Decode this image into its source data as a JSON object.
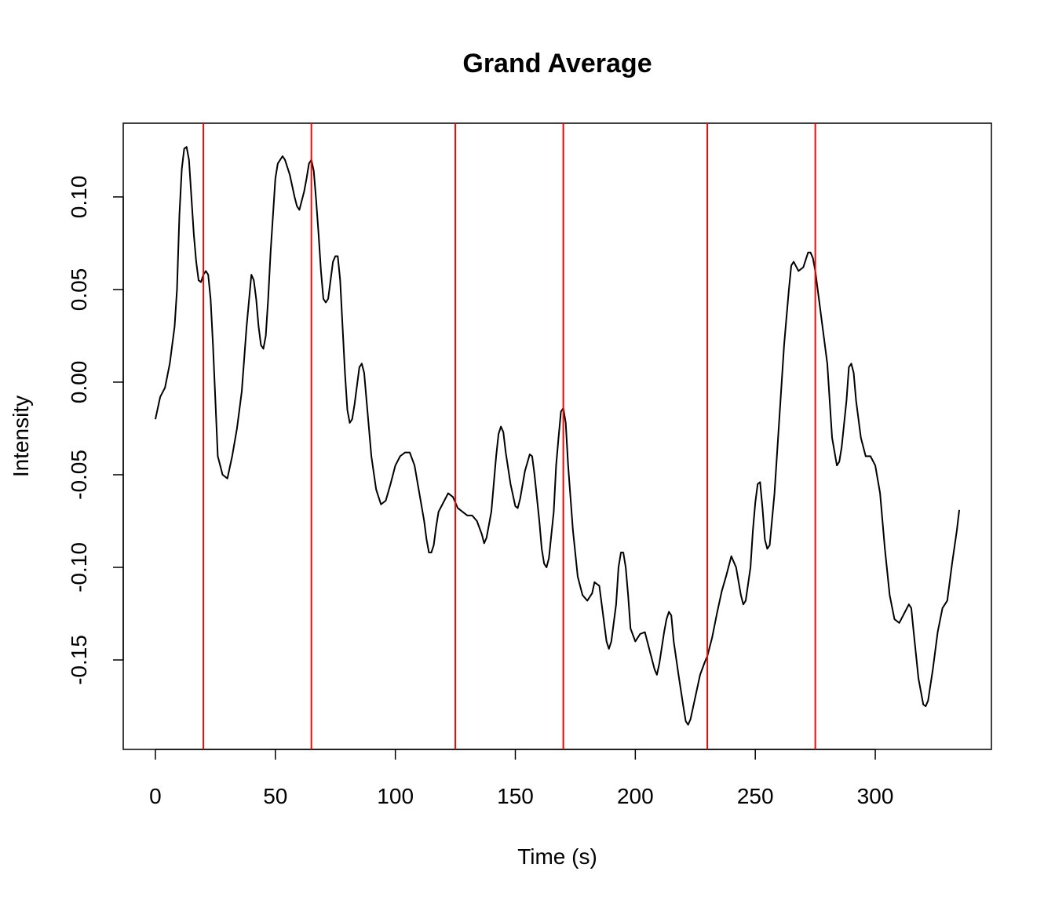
{
  "chart_data": {
    "type": "line",
    "title": "Grand Average",
    "x_label": "Time (s)",
    "y_label": "Intensity",
    "x": [
      0,
      2,
      4,
      6,
      8,
      9,
      10,
      11,
      12,
      13,
      14,
      15,
      16,
      17,
      18,
      19,
      20,
      21,
      22,
      23,
      24,
      25,
      26,
      27,
      28,
      30,
      32,
      34,
      36,
      38,
      40,
      41,
      42,
      43,
      44,
      45,
      46,
      47,
      48,
      49,
      50,
      51,
      52,
      53,
      54,
      56,
      58,
      59,
      60,
      61,
      62,
      63,
      64,
      65,
      66,
      67,
      68,
      69,
      70,
      71,
      72,
      73,
      74,
      75,
      76,
      77,
      78,
      79,
      80,
      81,
      82,
      83,
      84,
      85,
      86,
      87,
      88,
      89,
      90,
      92,
      94,
      96,
      98,
      100,
      102,
      104,
      106,
      108,
      110,
      112,
      113,
      114,
      115,
      116,
      117,
      118,
      120,
      122,
      124,
      126,
      128,
      130,
      132,
      134,
      136,
      137,
      138,
      140,
      141,
      142,
      143,
      144,
      145,
      146,
      148,
      150,
      151,
      152,
      154,
      156,
      157,
      158,
      160,
      161,
      162,
      163,
      164,
      166,
      167,
      168,
      169,
      170,
      171,
      172,
      174,
      176,
      178,
      180,
      182,
      183,
      185,
      186,
      188,
      189,
      190,
      192,
      193,
      194,
      195,
      196,
      197,
      198,
      200,
      202,
      204,
      206,
      208,
      209,
      210,
      212,
      213,
      214,
      215,
      216,
      218,
      220,
      221,
      222,
      223,
      225,
      227,
      229,
      230,
      232,
      234,
      236,
      238,
      240,
      242,
      244,
      245,
      246,
      248,
      249,
      250,
      251,
      252,
      253,
      254,
      255,
      256,
      258,
      260,
      262,
      264,
      265,
      266,
      268,
      270,
      272,
      273,
      274,
      275,
      276,
      278,
      280,
      281,
      282,
      284,
      285,
      286,
      288,
      289,
      290,
      291,
      292,
      294,
      296,
      298,
      300,
      302,
      304,
      306,
      308,
      310,
      312,
      314,
      315,
      316,
      318,
      320,
      321,
      322,
      324,
      326,
      328,
      330,
      332,
      334,
      335
    ],
    "series": [
      {
        "name": "Intensity",
        "color": "#000000",
        "values": [
          -0.02,
          -0.008,
          -0.003,
          0.01,
          0.03,
          0.05,
          0.09,
          0.115,
          0.126,
          0.127,
          0.12,
          0.1,
          0.08,
          0.065,
          0.055,
          0.054,
          0.058,
          0.06,
          0.058,
          0.045,
          0.02,
          -0.01,
          -0.04,
          -0.045,
          -0.05,
          -0.052,
          -0.04,
          -0.025,
          -0.005,
          0.03,
          0.058,
          0.055,
          0.045,
          0.03,
          0.02,
          0.018,
          0.025,
          0.045,
          0.07,
          0.09,
          0.11,
          0.118,
          0.12,
          0.122,
          0.12,
          0.112,
          0.1,
          0.095,
          0.093,
          0.098,
          0.103,
          0.11,
          0.118,
          0.12,
          0.114,
          0.098,
          0.08,
          0.06,
          0.045,
          0.043,
          0.045,
          0.055,
          0.065,
          0.068,
          0.068,
          0.055,
          0.03,
          0.005,
          -0.015,
          -0.022,
          -0.02,
          -0.012,
          -0.002,
          0.008,
          0.01,
          0.005,
          -0.01,
          -0.025,
          -0.04,
          -0.058,
          -0.066,
          -0.064,
          -0.055,
          -0.045,
          -0.04,
          -0.038,
          -0.038,
          -0.045,
          -0.06,
          -0.075,
          -0.085,
          -0.092,
          -0.092,
          -0.088,
          -0.078,
          -0.07,
          -0.065,
          -0.06,
          -0.062,
          -0.068,
          -0.07,
          -0.072,
          -0.072,
          -0.075,
          -0.082,
          -0.087,
          -0.084,
          -0.07,
          -0.055,
          -0.04,
          -0.028,
          -0.024,
          -0.027,
          -0.038,
          -0.055,
          -0.067,
          -0.068,
          -0.063,
          -0.048,
          -0.039,
          -0.04,
          -0.05,
          -0.075,
          -0.09,
          -0.098,
          -0.1,
          -0.095,
          -0.07,
          -0.045,
          -0.03,
          -0.016,
          -0.014,
          -0.022,
          -0.045,
          -0.08,
          -0.105,
          -0.115,
          -0.118,
          -0.114,
          -0.108,
          -0.11,
          -0.12,
          -0.14,
          -0.144,
          -0.14,
          -0.12,
          -0.1,
          -0.092,
          -0.092,
          -0.1,
          -0.115,
          -0.133,
          -0.14,
          -0.136,
          -0.135,
          -0.145,
          -0.155,
          -0.158,
          -0.152,
          -0.135,
          -0.128,
          -0.124,
          -0.126,
          -0.14,
          -0.158,
          -0.175,
          -0.183,
          -0.185,
          -0.182,
          -0.17,
          -0.158,
          -0.151,
          -0.148,
          -0.138,
          -0.125,
          -0.113,
          -0.104,
          -0.094,
          -0.1,
          -0.115,
          -0.12,
          -0.118,
          -0.1,
          -0.08,
          -0.065,
          -0.055,
          -0.054,
          -0.068,
          -0.085,
          -0.09,
          -0.088,
          -0.06,
          -0.02,
          0.02,
          0.05,
          0.063,
          0.065,
          0.06,
          0.062,
          0.07,
          0.07,
          0.067,
          0.06,
          0.05,
          0.03,
          0.01,
          -0.01,
          -0.03,
          -0.045,
          -0.043,
          -0.035,
          -0.01,
          0.008,
          0.01,
          0.005,
          -0.01,
          -0.03,
          -0.04,
          -0.04,
          -0.045,
          -0.06,
          -0.09,
          -0.115,
          -0.128,
          -0.13,
          -0.125,
          -0.12,
          -0.122,
          -0.135,
          -0.16,
          -0.174,
          -0.175,
          -0.172,
          -0.155,
          -0.135,
          -0.122,
          -0.118,
          -0.098,
          -0.08,
          -0.069
        ]
      }
    ],
    "vlines": {
      "color": "#ff0000",
      "values": [
        20,
        65,
        125,
        170,
        230,
        275
      ]
    },
    "xlim": [
      -13.4,
      348.4
    ],
    "ylim": [
      -0.1983,
      0.1398
    ],
    "xticks": [
      0,
      50,
      100,
      150,
      200,
      250,
      300
    ],
    "yticks": [
      -0.15,
      {
        "value": -0.1,
        "label": "-0.10"
      },
      -0.05,
      {
        "value": 0,
        "label": "0.00"
      },
      0.05,
      {
        "value": 0.1,
        "label": "0.10"
      }
    ]
  }
}
